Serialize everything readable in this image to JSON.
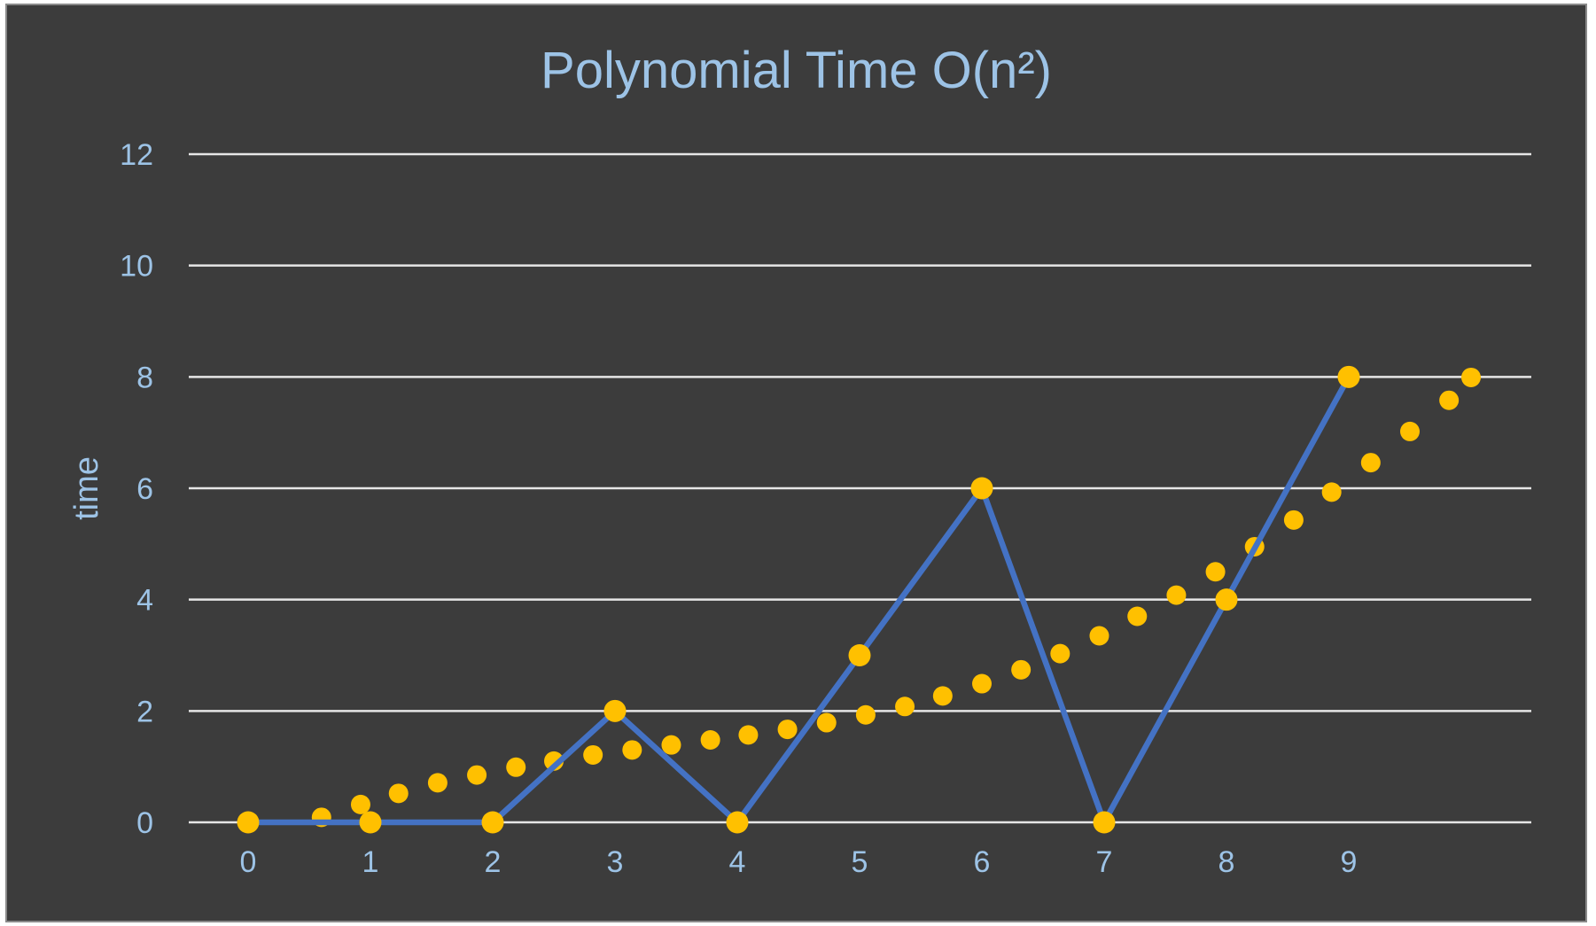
{
  "chart_data": {
    "type": "line",
    "title": "Polynomial Time O(n²)",
    "ylabel": "time",
    "xlabel": "",
    "categories": [
      "0",
      "1",
      "2",
      "3",
      "4",
      "5",
      "6",
      "7",
      "8",
      "9"
    ],
    "ylim": [
      0,
      12
    ],
    "yticks": [
      0,
      2,
      4,
      6,
      8,
      10,
      12
    ],
    "grid": true,
    "legend": "none",
    "series": [
      {
        "values": [
          0,
          0,
          0,
          2,
          0,
          3,
          6,
          0,
          4,
          8
        ],
        "color": "#4472c4",
        "markers": "#ffc000"
      }
    ],
    "trendline": {
      "type": "polynomial-order-2",
      "color": "#ffc000",
      "style": "round-dot",
      "x": [
        0,
        0.6,
        0.92,
        1.23,
        1.55,
        1.87,
        2.19,
        2.5,
        2.82,
        3.14,
        3.46,
        3.78,
        4.09,
        4.41,
        4.73,
        5.05,
        5.37,
        5.68,
        6.0,
        6.32,
        6.64,
        6.96,
        7.27,
        7.59,
        7.91,
        8.23,
        8.55,
        8.86,
        9.18,
        9.5,
        9.82,
        10.0
      ],
      "y": [
        0,
        0.09,
        0.32,
        0.52,
        0.71,
        0.85,
        0.99,
        1.1,
        1.21,
        1.3,
        1.39,
        1.48,
        1.57,
        1.67,
        1.79,
        1.93,
        2.08,
        2.27,
        2.49,
        2.74,
        3.03,
        3.35,
        3.7,
        4.08,
        4.5,
        4.95,
        5.43,
        5.93,
        6.46,
        7.02,
        7.58,
        7.99
      ]
    }
  }
}
